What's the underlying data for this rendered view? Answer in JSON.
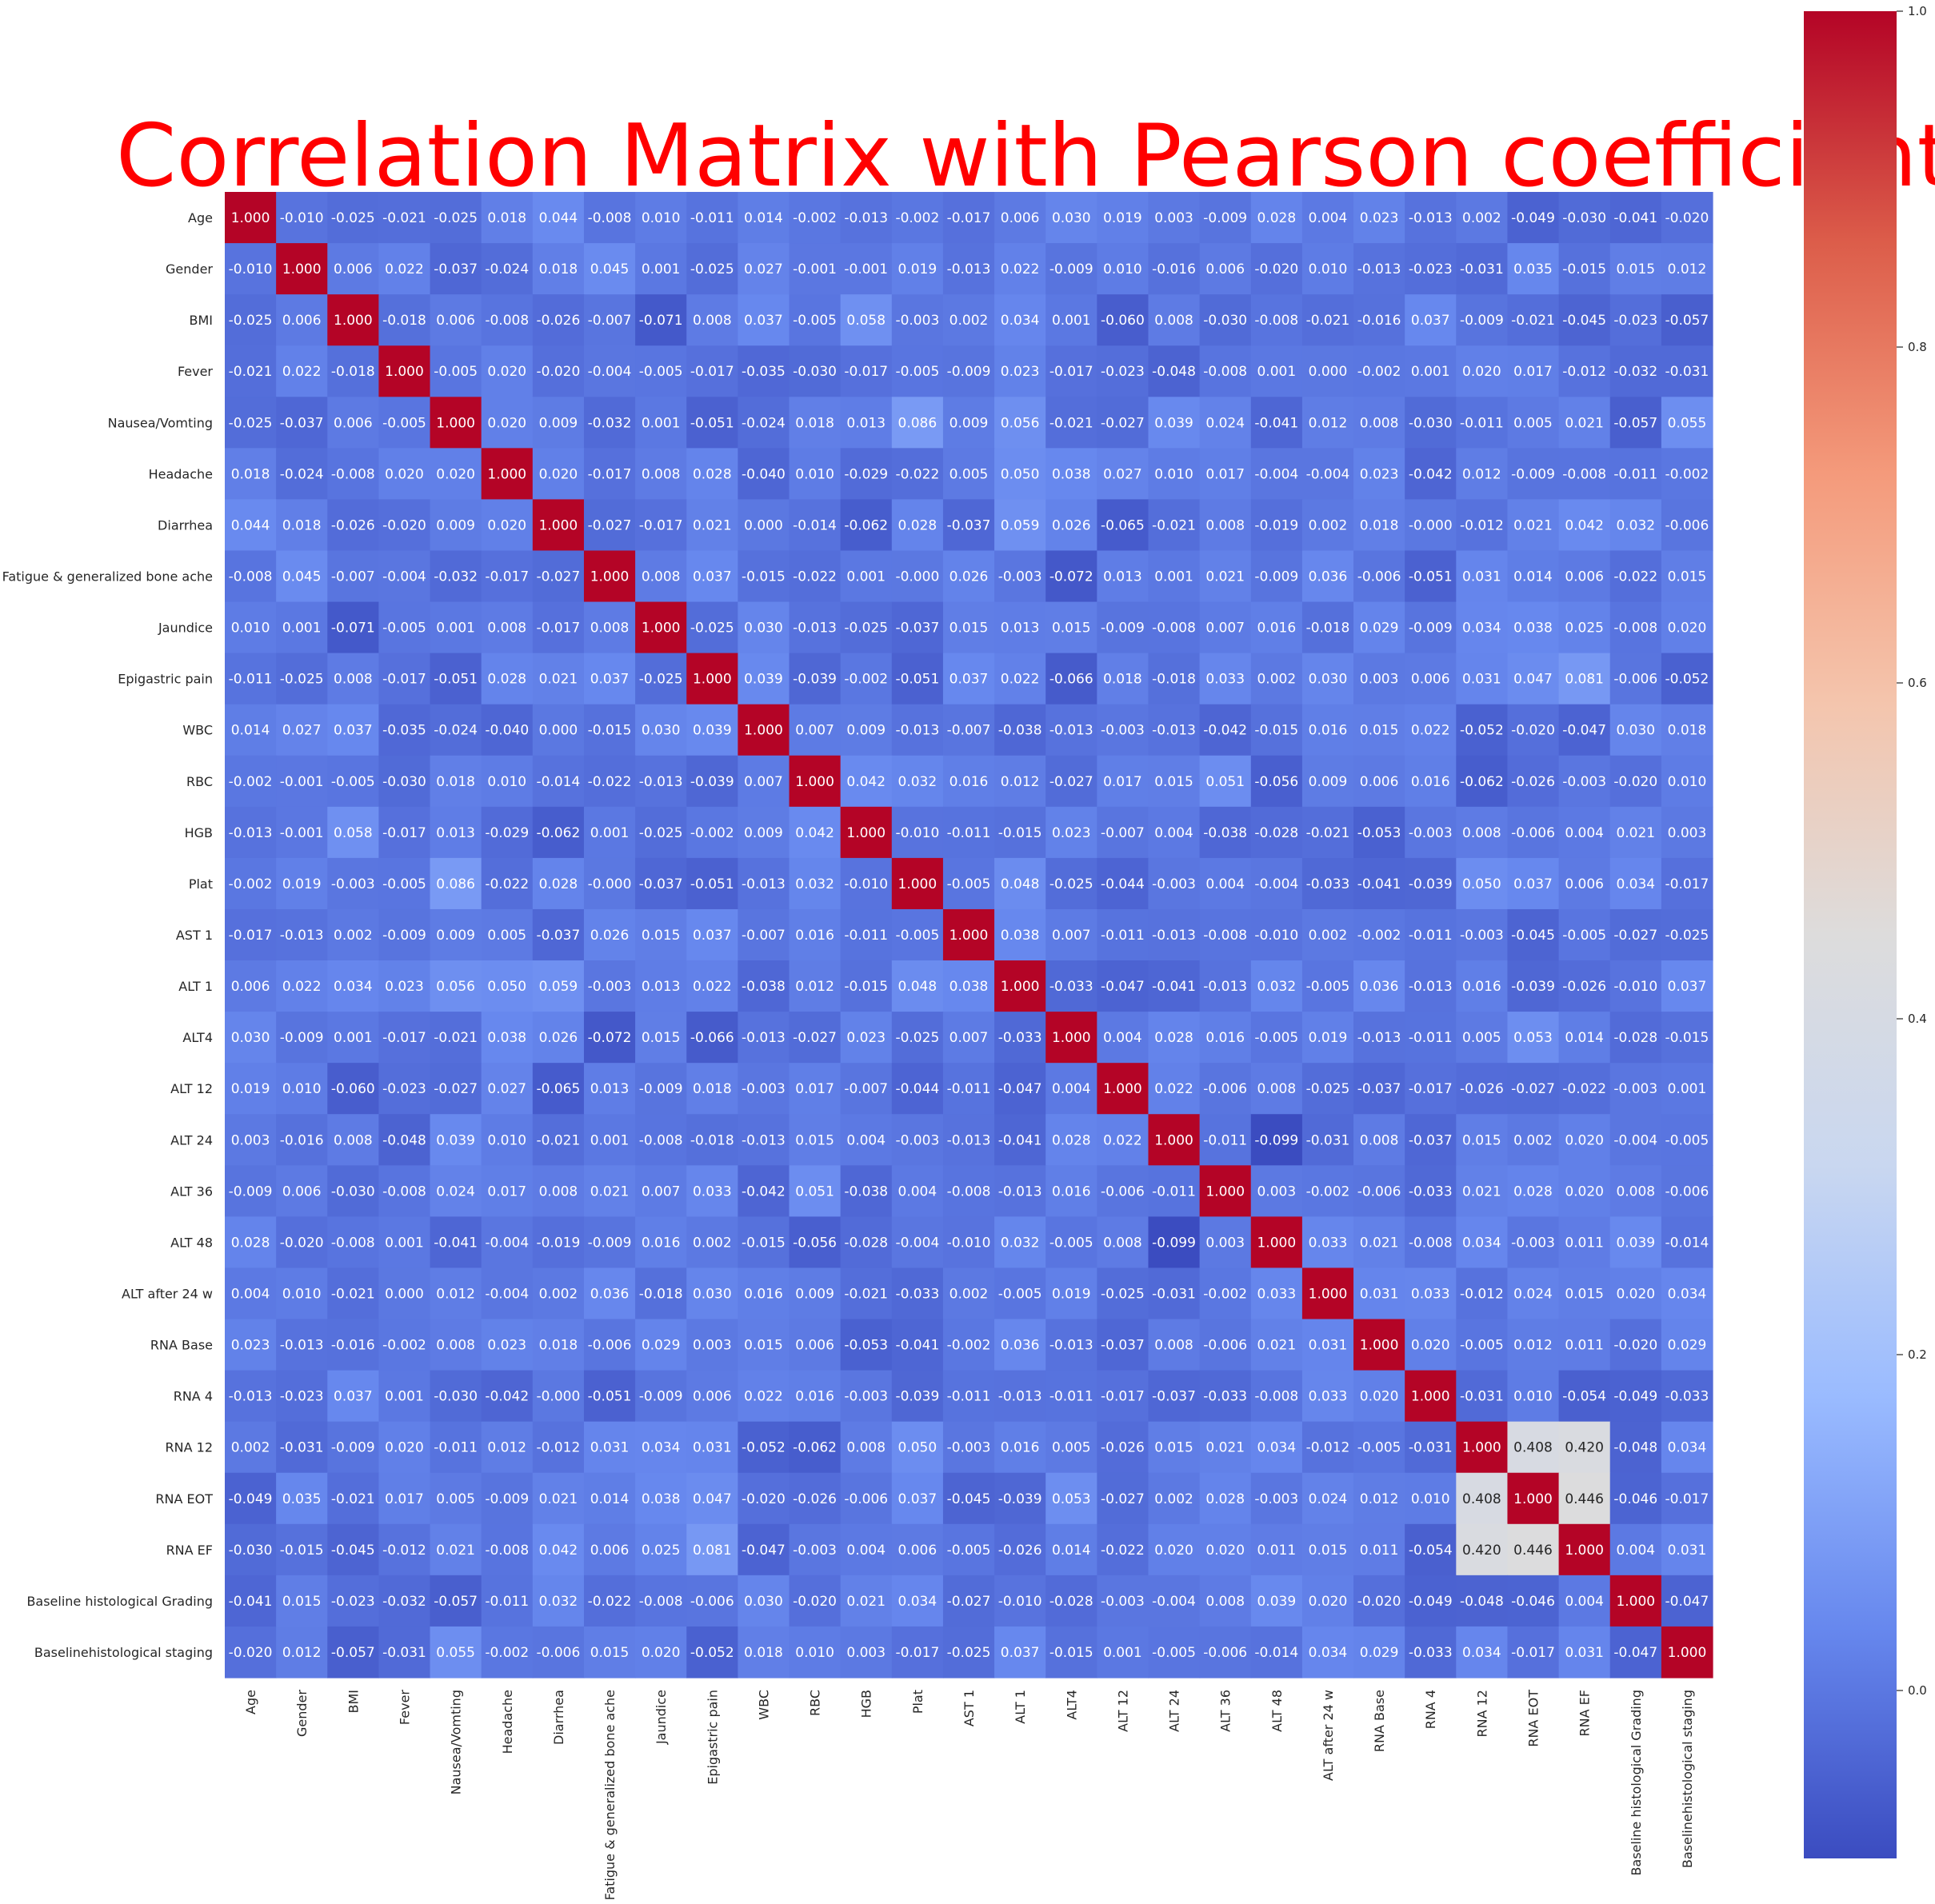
{
  "chart_data": {
    "type": "heatmap",
    "title": "Correlation Matrix with Pearson coefficient",
    "title_color": "#ff0000",
    "colormap": "coolwarm",
    "colormap_stops": [
      "#3b4cc0",
      "#6788ee",
      "#9abbff",
      "#c9d7f0",
      "#dddcdc",
      "#f4c5ad",
      "#f49a7b",
      "#dc5d4a",
      "#b40426"
    ],
    "vmin": -0.1,
    "vmax": 1.0,
    "colorbar_ticks": [
      "0.0",
      "0.2",
      "0.4",
      "0.6",
      "0.8",
      "1.0"
    ],
    "labels": [
      "Age",
      "Gender",
      "BMI",
      "Fever",
      "Nausea/Vomting",
      "Headache ",
      "Diarrhea ",
      "Fatigue & generalized bone ache ",
      "Jaundice ",
      "Epigastric pain ",
      "WBC",
      "RBC",
      "HGB",
      "Plat",
      "AST 1",
      "ALT 1",
      "ALT4",
      "ALT 12",
      "ALT 24",
      "ALT 36",
      "ALT 48",
      "ALT after 24 w",
      "RNA Base",
      "RNA 4",
      "RNA 12",
      "RNA EOT",
      "RNA EF",
      "Baseline histological Grading",
      "Baselinehistological staging"
    ],
    "matrix": [
      [
        "1.000",
        "-0.010",
        "-0.025",
        "-0.021",
        "-0.025",
        "0.018",
        "0.044",
        "-0.008",
        "0.010",
        "-0.011",
        "0.014",
        "-0.002",
        "-0.013",
        "-0.002",
        "-0.017",
        "0.006",
        "0.030",
        "0.019",
        "0.003",
        "-0.009",
        "0.028",
        "0.004",
        "0.023",
        "-0.013",
        "0.002",
        "-0.049",
        "-0.030",
        "-0.041",
        "-0.020"
      ],
      [
        "-0.010",
        "1.000",
        "0.006",
        "0.022",
        "-0.037",
        "-0.024",
        "0.018",
        "0.045",
        "0.001",
        "-0.025",
        "0.027",
        "-0.001",
        "-0.001",
        "0.019",
        "-0.013",
        "0.022",
        "-0.009",
        "0.010",
        "-0.016",
        "0.006",
        "-0.020",
        "0.010",
        "-0.013",
        "-0.023",
        "-0.031",
        "0.035",
        "-0.015",
        "0.015",
        "0.012"
      ],
      [
        "-0.025",
        "0.006",
        "1.000",
        "-0.018",
        "0.006",
        "-0.008",
        "-0.026",
        "-0.007",
        "-0.071",
        "0.008",
        "0.037",
        "-0.005",
        "0.058",
        "-0.003",
        "0.002",
        "0.034",
        "0.001",
        "-0.060",
        "0.008",
        "-0.030",
        "-0.008",
        "-0.021",
        "-0.016",
        "0.037",
        "-0.009",
        "-0.021",
        "-0.045",
        "-0.023",
        "-0.057"
      ],
      [
        "-0.021",
        "0.022",
        "-0.018",
        "1.000",
        "-0.005",
        "0.020",
        "-0.020",
        "-0.004",
        "-0.005",
        "-0.017",
        "-0.035",
        "-0.030",
        "-0.017",
        "-0.005",
        "-0.009",
        "0.023",
        "-0.017",
        "-0.023",
        "-0.048",
        "-0.008",
        "0.001",
        "0.000",
        "-0.002",
        "0.001",
        "0.020",
        "0.017",
        "-0.012",
        "-0.032",
        "-0.031"
      ],
      [
        "-0.025",
        "-0.037",
        "0.006",
        "-0.005",
        "1.000",
        "0.020",
        "0.009",
        "-0.032",
        "0.001",
        "-0.051",
        "-0.024",
        "0.018",
        "0.013",
        "0.086",
        "0.009",
        "0.056",
        "-0.021",
        "-0.027",
        "0.039",
        "0.024",
        "-0.041",
        "0.012",
        "0.008",
        "-0.030",
        "-0.011",
        "0.005",
        "0.021",
        "-0.057",
        "0.055"
      ],
      [
        "0.018",
        "-0.024",
        "-0.008",
        "0.020",
        "0.020",
        "1.000",
        "0.020",
        "-0.017",
        "0.008",
        "0.028",
        "-0.040",
        "0.010",
        "-0.029",
        "-0.022",
        "0.005",
        "0.050",
        "0.038",
        "0.027",
        "0.010",
        "0.017",
        "-0.004",
        "-0.004",
        "0.023",
        "-0.042",
        "0.012",
        "-0.009",
        "-0.008",
        "-0.011",
        "-0.002"
      ],
      [
        "0.044",
        "0.018",
        "-0.026",
        "-0.020",
        "0.009",
        "0.020",
        "1.000",
        "-0.027",
        "-0.017",
        "0.021",
        "0.000",
        "-0.014",
        "-0.062",
        "0.028",
        "-0.037",
        "0.059",
        "0.026",
        "-0.065",
        "-0.021",
        "0.008",
        "-0.019",
        "0.002",
        "0.018",
        "-0.000",
        "-0.012",
        "0.021",
        "0.042",
        "0.032",
        "-0.006"
      ],
      [
        "-0.008",
        "0.045",
        "-0.007",
        "-0.004",
        "-0.032",
        "-0.017",
        "-0.027",
        "1.000",
        "0.008",
        "0.037",
        "-0.015",
        "-0.022",
        "0.001",
        "-0.000",
        "0.026",
        "-0.003",
        "-0.072",
        "0.013",
        "0.001",
        "0.021",
        "-0.009",
        "0.036",
        "-0.006",
        "-0.051",
        "0.031",
        "0.014",
        "0.006",
        "-0.022",
        "0.015"
      ],
      [
        "0.010",
        "0.001",
        "-0.071",
        "-0.005",
        "0.001",
        "0.008",
        "-0.017",
        "0.008",
        "1.000",
        "-0.025",
        "0.030",
        "-0.013",
        "-0.025",
        "-0.037",
        "0.015",
        "0.013",
        "0.015",
        "-0.009",
        "-0.008",
        "0.007",
        "0.016",
        "-0.018",
        "0.029",
        "-0.009",
        "0.034",
        "0.038",
        "0.025",
        "-0.008",
        "0.020"
      ],
      [
        "-0.011",
        "-0.025",
        "0.008",
        "-0.017",
        "-0.051",
        "0.028",
        "0.021",
        "0.037",
        "-0.025",
        "1.000",
        "0.039",
        "-0.039",
        "-0.002",
        "-0.051",
        "0.037",
        "0.022",
        "-0.066",
        "0.018",
        "-0.018",
        "0.033",
        "0.002",
        "0.030",
        "0.003",
        "0.006",
        "0.031",
        "0.047",
        "0.081",
        "-0.006",
        "-0.052"
      ],
      [
        "0.014",
        "0.027",
        "0.037",
        "-0.035",
        "-0.024",
        "-0.040",
        "0.000",
        "-0.015",
        "0.030",
        "0.039",
        "1.000",
        "0.007",
        "0.009",
        "-0.013",
        "-0.007",
        "-0.038",
        "-0.013",
        "-0.003",
        "-0.013",
        "-0.042",
        "-0.015",
        "0.016",
        "0.015",
        "0.022",
        "-0.052",
        "-0.020",
        "-0.047",
        "0.030",
        "0.018"
      ],
      [
        "-0.002",
        "-0.001",
        "-0.005",
        "-0.030",
        "0.018",
        "0.010",
        "-0.014",
        "-0.022",
        "-0.013",
        "-0.039",
        "0.007",
        "1.000",
        "0.042",
        "0.032",
        "0.016",
        "0.012",
        "-0.027",
        "0.017",
        "0.015",
        "0.051",
        "-0.056",
        "0.009",
        "0.006",
        "0.016",
        "-0.062",
        "-0.026",
        "-0.003",
        "-0.020",
        "0.010"
      ],
      [
        "-0.013",
        "-0.001",
        "0.058",
        "-0.017",
        "0.013",
        "-0.029",
        "-0.062",
        "0.001",
        "-0.025",
        "-0.002",
        "0.009",
        "0.042",
        "1.000",
        "-0.010",
        "-0.011",
        "-0.015",
        "0.023",
        "-0.007",
        "0.004",
        "-0.038",
        "-0.028",
        "-0.021",
        "-0.053",
        "-0.003",
        "0.008",
        "-0.006",
        "0.004",
        "0.021",
        "0.003"
      ],
      [
        "-0.002",
        "0.019",
        "-0.003",
        "-0.005",
        "0.086",
        "-0.022",
        "0.028",
        "-0.000",
        "-0.037",
        "-0.051",
        "-0.013",
        "0.032",
        "-0.010",
        "1.000",
        "-0.005",
        "0.048",
        "-0.025",
        "-0.044",
        "-0.003",
        "0.004",
        "-0.004",
        "-0.033",
        "-0.041",
        "-0.039",
        "0.050",
        "0.037",
        "0.006",
        "0.034",
        "-0.017"
      ],
      [
        "-0.017",
        "-0.013",
        "0.002",
        "-0.009",
        "0.009",
        "0.005",
        "-0.037",
        "0.026",
        "0.015",
        "0.037",
        "-0.007",
        "0.016",
        "-0.011",
        "-0.005",
        "1.000",
        "0.038",
        "0.007",
        "-0.011",
        "-0.013",
        "-0.008",
        "-0.010",
        "0.002",
        "-0.002",
        "-0.011",
        "-0.003",
        "-0.045",
        "-0.005",
        "-0.027",
        "-0.025"
      ],
      [
        "0.006",
        "0.022",
        "0.034",
        "0.023",
        "0.056",
        "0.050",
        "0.059",
        "-0.003",
        "0.013",
        "0.022",
        "-0.038",
        "0.012",
        "-0.015",
        "0.048",
        "0.038",
        "1.000",
        "-0.033",
        "-0.047",
        "-0.041",
        "-0.013",
        "0.032",
        "-0.005",
        "0.036",
        "-0.013",
        "0.016",
        "-0.039",
        "-0.026",
        "-0.010",
        "0.037"
      ],
      [
        "0.030",
        "-0.009",
        "0.001",
        "-0.017",
        "-0.021",
        "0.038",
        "0.026",
        "-0.072",
        "0.015",
        "-0.066",
        "-0.013",
        "-0.027",
        "0.023",
        "-0.025",
        "0.007",
        "-0.033",
        "1.000",
        "0.004",
        "0.028",
        "0.016",
        "-0.005",
        "0.019",
        "-0.013",
        "-0.011",
        "0.005",
        "0.053",
        "0.014",
        "-0.028",
        "-0.015"
      ],
      [
        "0.019",
        "0.010",
        "-0.060",
        "-0.023",
        "-0.027",
        "0.027",
        "-0.065",
        "0.013",
        "-0.009",
        "0.018",
        "-0.003",
        "0.017",
        "-0.007",
        "-0.044",
        "-0.011",
        "-0.047",
        "0.004",
        "1.000",
        "0.022",
        "-0.006",
        "0.008",
        "-0.025",
        "-0.037",
        "-0.017",
        "-0.026",
        "-0.027",
        "-0.022",
        "-0.003",
        "0.001"
      ],
      [
        "0.003",
        "-0.016",
        "0.008",
        "-0.048",
        "0.039",
        "0.010",
        "-0.021",
        "0.001",
        "-0.008",
        "-0.018",
        "-0.013",
        "0.015",
        "0.004",
        "-0.003",
        "-0.013",
        "-0.041",
        "0.028",
        "0.022",
        "1.000",
        "-0.011",
        "-0.099",
        "-0.031",
        "0.008",
        "-0.037",
        "0.015",
        "0.002",
        "0.020",
        "-0.004",
        "-0.005"
      ],
      [
        "-0.009",
        "0.006",
        "-0.030",
        "-0.008",
        "0.024",
        "0.017",
        "0.008",
        "0.021",
        "0.007",
        "0.033",
        "-0.042",
        "0.051",
        "-0.038",
        "0.004",
        "-0.008",
        "-0.013",
        "0.016",
        "-0.006",
        "-0.011",
        "1.000",
        "0.003",
        "-0.002",
        "-0.006",
        "-0.033",
        "0.021",
        "0.028",
        "0.020",
        "0.008",
        "-0.006"
      ],
      [
        "0.028",
        "-0.020",
        "-0.008",
        "0.001",
        "-0.041",
        "-0.004",
        "-0.019",
        "-0.009",
        "0.016",
        "0.002",
        "-0.015",
        "-0.056",
        "-0.028",
        "-0.004",
        "-0.010",
        "0.032",
        "-0.005",
        "0.008",
        "-0.099",
        "0.003",
        "1.000",
        "0.033",
        "0.021",
        "-0.008",
        "0.034",
        "-0.003",
        "0.011",
        "0.039",
        "-0.014"
      ],
      [
        "0.004",
        "0.010",
        "-0.021",
        "0.000",
        "0.012",
        "-0.004",
        "0.002",
        "0.036",
        "-0.018",
        "0.030",
        "0.016",
        "0.009",
        "-0.021",
        "-0.033",
        "0.002",
        "-0.005",
        "0.019",
        "-0.025",
        "-0.031",
        "-0.002",
        "0.033",
        "1.000",
        "0.031",
        "0.033",
        "-0.012",
        "0.024",
        "0.015",
        "0.020",
        "0.034"
      ],
      [
        "0.023",
        "-0.013",
        "-0.016",
        "-0.002",
        "0.008",
        "0.023",
        "0.018",
        "-0.006",
        "0.029",
        "0.003",
        "0.015",
        "0.006",
        "-0.053",
        "-0.041",
        "-0.002",
        "0.036",
        "-0.013",
        "-0.037",
        "0.008",
        "-0.006",
        "0.021",
        "0.031",
        "1.000",
        "0.020",
        "-0.005",
        "0.012",
        "0.011",
        "-0.020",
        "0.029"
      ],
      [
        "-0.013",
        "-0.023",
        "0.037",
        "0.001",
        "-0.030",
        "-0.042",
        "-0.000",
        "-0.051",
        "-0.009",
        "0.006",
        "0.022",
        "0.016",
        "-0.003",
        "-0.039",
        "-0.011",
        "-0.013",
        "-0.011",
        "-0.017",
        "-0.037",
        "-0.033",
        "-0.008",
        "0.033",
        "0.020",
        "1.000",
        "-0.031",
        "0.010",
        "-0.054",
        "-0.049",
        "-0.033"
      ],
      [
        "0.002",
        "-0.031",
        "-0.009",
        "0.020",
        "-0.011",
        "0.012",
        "-0.012",
        "0.031",
        "0.034",
        "0.031",
        "-0.052",
        "-0.062",
        "0.008",
        "0.050",
        "-0.003",
        "0.016",
        "0.005",
        "-0.026",
        "0.015",
        "0.021",
        "0.034",
        "-0.012",
        "-0.005",
        "-0.031",
        "1.000",
        "0.408",
        "0.420",
        "-0.048",
        "0.034"
      ],
      [
        "-0.049",
        "0.035",
        "-0.021",
        "0.017",
        "0.005",
        "-0.009",
        "0.021",
        "0.014",
        "0.038",
        "0.047",
        "-0.020",
        "-0.026",
        "-0.006",
        "0.037",
        "-0.045",
        "-0.039",
        "0.053",
        "-0.027",
        "0.002",
        "0.028",
        "-0.003",
        "0.024",
        "0.012",
        "0.010",
        "0.408",
        "1.000",
        "0.446",
        "-0.046",
        "-0.017"
      ],
      [
        "-0.030",
        "-0.015",
        "-0.045",
        "-0.012",
        "0.021",
        "-0.008",
        "0.042",
        "0.006",
        "0.025",
        "0.081",
        "-0.047",
        "-0.003",
        "0.004",
        "0.006",
        "-0.005",
        "-0.026",
        "0.014",
        "-0.022",
        "0.020",
        "0.020",
        "0.011",
        "0.015",
        "0.011",
        "-0.054",
        "0.420",
        "0.446",
        "1.000",
        "0.004",
        "0.031"
      ],
      [
        "-0.041",
        "0.015",
        "-0.023",
        "-0.032",
        "-0.057",
        "-0.011",
        "0.032",
        "-0.022",
        "-0.008",
        "-0.006",
        "0.030",
        "-0.020",
        "0.021",
        "0.034",
        "-0.027",
        "-0.010",
        "-0.028",
        "-0.003",
        "-0.004",
        "0.008",
        "0.039",
        "0.020",
        "-0.020",
        "-0.049",
        "-0.048",
        "-0.046",
        "0.004",
        "1.000",
        "-0.047"
      ],
      [
        "-0.020",
        "0.012",
        "-0.057",
        "-0.031",
        "0.055",
        "-0.002",
        "-0.006",
        "0.015",
        "0.020",
        "-0.052",
        "0.018",
        "0.010",
        "0.003",
        "-0.017",
        "-0.025",
        "0.037",
        "-0.015",
        "0.001",
        "-0.005",
        "-0.006",
        "-0.014",
        "0.034",
        "0.029",
        "-0.033",
        "0.034",
        "-0.017",
        "0.031",
        "-0.047",
        "1.000"
      ]
    ]
  }
}
